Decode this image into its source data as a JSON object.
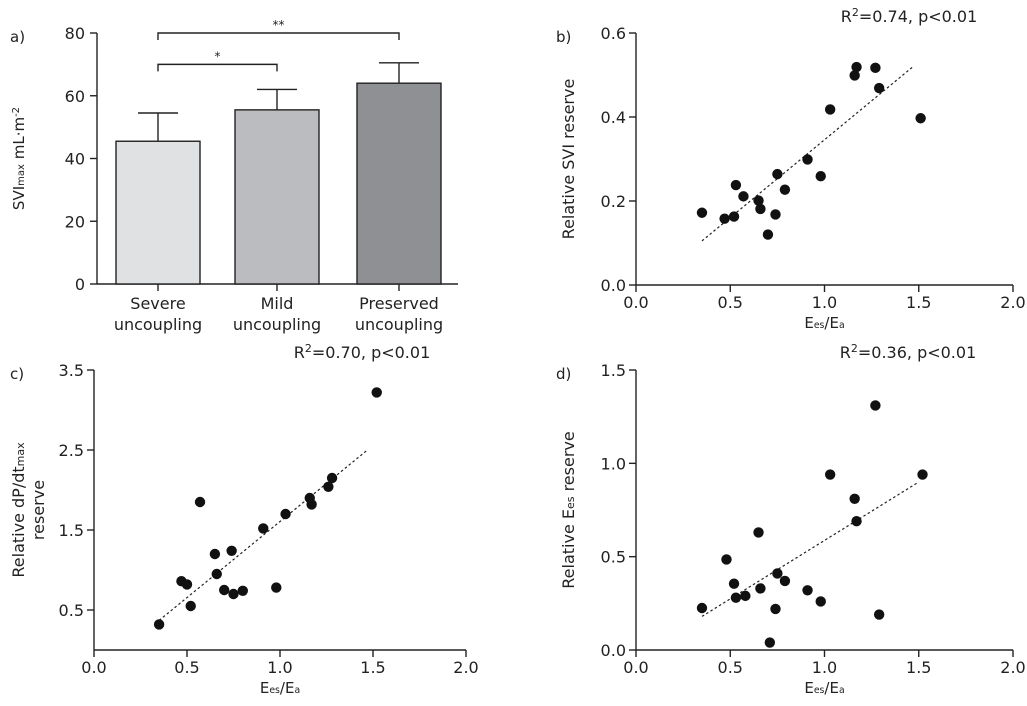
{
  "chart_data": [
    {
      "panel": "a)",
      "type": "bar",
      "ylabel_parts": [
        "SVI",
        "max",
        " mL·m",
        "-2"
      ],
      "ylim": [
        0,
        80
      ],
      "yticks": [
        0,
        20,
        40,
        60,
        80
      ],
      "categories": [
        [
          "Severe",
          "uncoupling"
        ],
        [
          "Mild",
          "uncoupling"
        ],
        [
          "Preserved",
          "uncoupling"
        ]
      ],
      "values": [
        45.5,
        55.5,
        64
      ],
      "errors": [
        9,
        6.5,
        6.5
      ],
      "bar_colors": [
        "#e0e1e3",
        "#bbbcbf",
        "#8f9094"
      ],
      "significance": [
        {
          "from": 0,
          "to": 1,
          "label": "*",
          "y": 70
        },
        {
          "from": 0,
          "to": 2,
          "label": "**",
          "y": 80
        }
      ]
    },
    {
      "panel": "b)",
      "type": "scatter",
      "annotation": "R²=0.74, p<0.01",
      "ylabel": "Relative  SVI reserve",
      "xlabel_parts": [
        "E",
        "es",
        "/E",
        "a"
      ],
      "xlim": [
        0,
        2
      ],
      "ylim": [
        0,
        0.6
      ],
      "xticks": [
        0,
        0.5,
        1.0,
        1.5,
        2.0
      ],
      "xtick_labels": [
        "0.0",
        "0.5",
        "1.0",
        "1.5",
        "2.0"
      ],
      "yticks": [
        0,
        0.2,
        0.4,
        0.6
      ],
      "ytick_labels": [
        "0.0",
        "0.2",
        "0.4",
        "0.6"
      ],
      "points": [
        [
          0.35,
          0.172
        ],
        [
          0.47,
          0.158
        ],
        [
          0.52,
          0.163
        ],
        [
          0.53,
          0.238
        ],
        [
          0.57,
          0.211
        ],
        [
          0.65,
          0.201
        ],
        [
          0.66,
          0.181
        ],
        [
          0.7,
          0.12
        ],
        [
          0.74,
          0.168
        ],
        [
          0.75,
          0.264
        ],
        [
          0.79,
          0.227
        ],
        [
          0.91,
          0.299
        ],
        [
          0.98,
          0.259
        ],
        [
          1.03,
          0.418
        ],
        [
          1.16,
          0.499
        ],
        [
          1.17,
          0.519
        ],
        [
          1.27,
          0.517
        ],
        [
          1.29,
          0.469
        ],
        [
          1.51,
          0.397
        ]
      ],
      "fit": [
        [
          0.35,
          0.105
        ],
        [
          1.47,
          0.52
        ]
      ]
    },
    {
      "panel": "c)",
      "type": "scatter",
      "annotation": "R²=0.70, p<0.01",
      "ylabel_line1_parts": [
        "Relative dP/dt",
        "max"
      ],
      "ylabel_line2": "reserve",
      "xlabel_parts": [
        "E",
        "es",
        "/E",
        "a"
      ],
      "xlim": [
        0,
        2
      ],
      "ylim": [
        0,
        3.5
      ],
      "xticks": [
        0,
        0.5,
        1.0,
        1.5,
        2.0
      ],
      "xtick_labels": [
        "0.0",
        "0.5",
        "1.0",
        "1.5",
        "2.0"
      ],
      "yticks": [
        0.5,
        1.5,
        2.5,
        3.5
      ],
      "ytick_labels": [
        "0.5",
        "1.5",
        "2.5",
        "3.5"
      ],
      "points": [
        [
          0.35,
          0.32
        ],
        [
          0.47,
          0.86
        ],
        [
          0.5,
          0.82
        ],
        [
          0.52,
          0.55
        ],
        [
          0.57,
          1.85
        ],
        [
          0.65,
          1.2
        ],
        [
          0.66,
          0.95
        ],
        [
          0.7,
          0.75
        ],
        [
          0.74,
          1.24
        ],
        [
          0.75,
          0.7
        ],
        [
          0.8,
          0.74
        ],
        [
          0.91,
          1.52
        ],
        [
          0.98,
          0.78
        ],
        [
          1.03,
          1.7
        ],
        [
          1.16,
          1.9
        ],
        [
          1.17,
          1.82
        ],
        [
          1.26,
          2.04
        ],
        [
          1.28,
          2.15
        ],
        [
          1.52,
          3.22
        ]
      ],
      "fit": [
        [
          0.35,
          0.37
        ],
        [
          1.47,
          2.5
        ]
      ]
    },
    {
      "panel": "d)",
      "type": "scatter",
      "annotation": "R²=0.36, p<0.01",
      "ylabel_parts": [
        "Relative E",
        "es",
        " reserve"
      ],
      "xlabel_parts": [
        "E",
        "es",
        "/E",
        "a"
      ],
      "xlim": [
        0,
        2
      ],
      "ylim": [
        0,
        1.5
      ],
      "xticks": [
        0,
        0.5,
        1.0,
        1.5,
        2.0
      ],
      "xtick_labels": [
        "0.0",
        "0.5",
        "1.0",
        "1.5",
        "2.0"
      ],
      "yticks": [
        0,
        0.5,
        1.0,
        1.5
      ],
      "ytick_labels": [
        "0.0",
        "0.5",
        "1.0",
        "1.5"
      ],
      "points": [
        [
          0.35,
          0.225
        ],
        [
          0.48,
          0.485
        ],
        [
          0.52,
          0.355
        ],
        [
          0.53,
          0.28
        ],
        [
          0.58,
          0.29
        ],
        [
          0.65,
          0.63
        ],
        [
          0.66,
          0.33
        ],
        [
          0.71,
          0.04
        ],
        [
          0.74,
          0.22
        ],
        [
          0.75,
          0.41
        ],
        [
          0.79,
          0.37
        ],
        [
          0.91,
          0.32
        ],
        [
          0.98,
          0.26
        ],
        [
          1.03,
          0.94
        ],
        [
          1.16,
          0.81
        ],
        [
          1.17,
          0.69
        ],
        [
          1.27,
          1.31
        ],
        [
          1.29,
          0.19
        ],
        [
          1.52,
          0.94
        ]
      ],
      "fit": [
        [
          0.35,
          0.18
        ],
        [
          1.5,
          0.9
        ]
      ]
    }
  ]
}
